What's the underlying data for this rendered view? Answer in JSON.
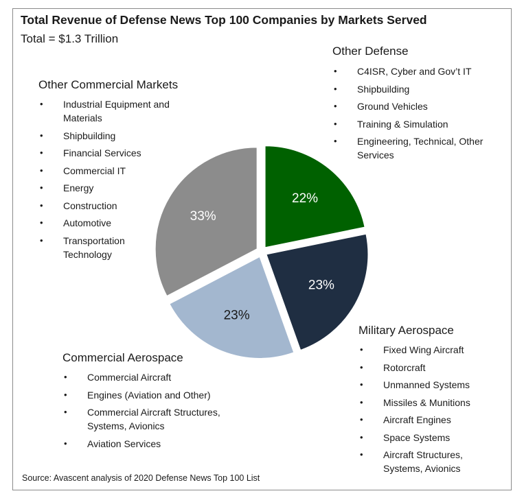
{
  "chart_data": {
    "type": "pie",
    "title": "Total Revenue of Defense News Top 100 Companies by Markets Served",
    "subtitle": "Total = $1.3 Trillion",
    "source": "Source: Avascent analysis of 2020 Defense News Top 100 List",
    "slices": [
      {
        "label": "Other Defense",
        "value": 22,
        "value_label": "22%",
        "color": "#006100",
        "text_color": "#ffffff"
      },
      {
        "label": "Military Aerospace",
        "value": 23,
        "value_label": "23%",
        "color": "#1f2e42",
        "text_color": "#ffffff"
      },
      {
        "label": "Commercial Aerospace",
        "value": 23,
        "value_label": "23%",
        "color": "#a3b7cf",
        "text_color": "#1a1a1a"
      },
      {
        "label": "Other Commercial Markets",
        "value": 33,
        "value_label": "33%",
        "color": "#8c8c8c",
        "text_color": "#ffffff"
      }
    ]
  },
  "groups": {
    "other_defense": {
      "heading": "Other Defense",
      "items": [
        "C4ISR, Cyber and Gov’t IT",
        "Shipbuilding",
        "Ground Vehicles",
        "Training & Simulation",
        "Engineering, Technical, Other Services"
      ]
    },
    "other_commercial": {
      "heading": "Other Commercial Markets",
      "items": [
        "Industrial Equipment and Materials",
        "Shipbuilding",
        "Financial Services",
        "Commercial IT",
        "Energy",
        "Construction",
        "Automotive",
        "Transportation Technology"
      ]
    },
    "commercial_aero": {
      "heading": "Commercial Aerospace",
      "items": [
        "Commercial Aircraft",
        "Engines (Aviation and Other)",
        "Commercial Aircraft Structures, Systems, Avionics",
        "Aviation Services"
      ]
    },
    "military_aero": {
      "heading": "Military Aerospace",
      "items": [
        "Fixed Wing Aircraft",
        "Rotorcraft",
        "Unmanned Systems",
        "Missiles & Munitions",
        "Aircraft Engines",
        "Space Systems",
        "Aircraft Structures, Systems, Avionics"
      ]
    }
  }
}
